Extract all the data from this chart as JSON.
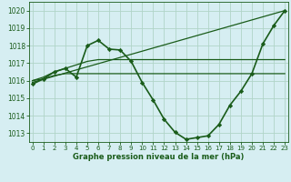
{
  "background_color": "#d6eef2",
  "grid_color": "#b0d4c8",
  "line_color": "#1a5c1a",
  "marker_color": "#1a5c1a",
  "xlabel": "Graphe pression niveau de la mer (hPa)",
  "ylim": [
    1012.5,
    1020.5
  ],
  "xlim": [
    -0.3,
    23.3
  ],
  "yticks": [
    1013,
    1014,
    1015,
    1016,
    1017,
    1018,
    1019,
    1020
  ],
  "xticks": [
    0,
    1,
    2,
    3,
    4,
    5,
    6,
    7,
    8,
    9,
    10,
    11,
    12,
    13,
    14,
    15,
    16,
    17,
    18,
    19,
    20,
    21,
    22,
    23
  ],
  "series": [
    {
      "x": [
        0,
        1,
        2,
        3,
        4,
        5,
        6,
        7,
        8,
        9,
        10,
        11,
        12,
        13,
        14,
        15,
        16,
        17,
        18,
        19,
        20,
        21,
        22,
        23
      ],
      "y": [
        1015.8,
        1016.1,
        1016.5,
        1016.7,
        1016.2,
        1018.0,
        1018.3,
        1017.8,
        1017.75,
        1017.1,
        1015.9,
        1014.9,
        1013.8,
        1013.05,
        1012.65,
        1012.75,
        1012.85,
        1013.5,
        1014.6,
        1015.4,
        1016.4,
        1018.1,
        1019.15,
        1020.0
      ],
      "with_markers": true,
      "linewidth": 1.2
    },
    {
      "x": [
        0,
        23
      ],
      "y": [
        1015.9,
        1020.0
      ],
      "with_markers": false,
      "linewidth": 0.9
    },
    {
      "x": [
        0,
        1,
        2,
        3,
        4,
        5,
        6,
        7,
        8,
        9,
        10,
        11,
        12,
        13,
        14,
        15,
        16,
        17,
        18,
        19,
        20,
        21,
        22,
        23
      ],
      "y": [
        1016.0,
        1016.1,
        1016.3,
        1016.4,
        1016.4,
        1016.4,
        1016.4,
        1016.4,
        1016.4,
        1016.4,
        1016.4,
        1016.4,
        1016.4,
        1016.4,
        1016.4,
        1016.4,
        1016.4,
        1016.4,
        1016.4,
        1016.4,
        1016.4,
        1016.4,
        1016.4,
        1016.4
      ],
      "with_markers": false,
      "linewidth": 0.9
    },
    {
      "x": [
        0,
        1,
        2,
        3,
        4,
        5,
        6,
        7,
        8,
        9,
        10,
        11,
        12,
        13,
        14,
        15,
        16,
        17,
        18,
        19,
        20,
        21,
        22,
        23
      ],
      "y": [
        1016.0,
        1016.2,
        1016.5,
        1016.7,
        1016.9,
        1017.1,
        1017.2,
        1017.2,
        1017.2,
        1017.2,
        1017.2,
        1017.2,
        1017.2,
        1017.2,
        1017.2,
        1017.2,
        1017.2,
        1017.2,
        1017.2,
        1017.2,
        1017.2,
        1017.2,
        1017.2,
        1017.2
      ],
      "with_markers": false,
      "linewidth": 0.9
    }
  ]
}
